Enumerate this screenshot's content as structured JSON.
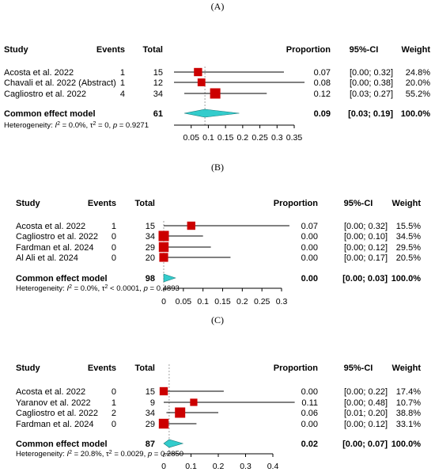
{
  "chart_data": [
    {
      "type": "forest",
      "panel_label": "(A)",
      "columns": {
        "study": "Study",
        "events": "Events",
        "total": "Total",
        "proportion": "Proportion",
        "ci": "95%-CI",
        "weight": "Weight"
      },
      "studies": [
        {
          "study": "Acosta et al. 2022",
          "events": "1",
          "total": "15",
          "proportion": 0.07,
          "ci_low": 0.0,
          "ci_high": 0.32,
          "prop_text": "0.07",
          "ci_text": "[0.00; 0.32]",
          "weight_text": "24.8%",
          "weight": 24.8
        },
        {
          "study": "Chavali et al. 2022 (Abstract)",
          "events": "1",
          "total": "12",
          "proportion": 0.08,
          "ci_low": 0.0,
          "ci_high": 0.38,
          "prop_text": "0.08",
          "ci_text": "[0.00; 0.38]",
          "weight_text": "20.0%",
          "weight": 20.0
        },
        {
          "study": "Cagliostro et al. 2022",
          "events": "4",
          "total": "34",
          "proportion": 0.12,
          "ci_low": 0.03,
          "ci_high": 0.27,
          "prop_text": "0.12",
          "ci_text": "[0.03; 0.27]",
          "weight_text": "55.2%",
          "weight": 55.2
        }
      ],
      "pooled": {
        "label": "Common effect model",
        "total": "61",
        "proportion": 0.09,
        "ci_low": 0.03,
        "ci_high": 0.19,
        "prop_text": "0.09",
        "ci_text": "[0.03; 0.19]",
        "weight_text": "100.0%"
      },
      "heterogeneity": {
        "prefix": "Heterogeneity: ",
        "i2": "= 0.0%, ",
        "tau2": "= 0, ",
        "p": "= 0.9271"
      },
      "xlim": [
        0.0,
        0.35
      ],
      "ticks": [
        0.05,
        0.1,
        0.15,
        0.2,
        0.25,
        0.3,
        0.35
      ],
      "tick_labels": [
        "0.05",
        "0.1",
        "0.15",
        "0.2",
        "0.25",
        "0.3",
        "0.35"
      ],
      "reference_line": 0.09
    },
    {
      "type": "forest",
      "panel_label": "(B)",
      "columns": {
        "study": "Study",
        "events": "Events",
        "total": "Total",
        "proportion": "Proportion",
        "ci": "95%-CI",
        "weight": "Weight"
      },
      "studies": [
        {
          "study": "Acosta et al. 2022",
          "events": "1",
          "total": "15",
          "proportion": 0.07,
          "ci_low": 0.0,
          "ci_high": 0.32,
          "prop_text": "0.07",
          "ci_text": "[0.00; 0.32]",
          "weight_text": "15.5%",
          "weight": 15.5
        },
        {
          "study": "Cagliostro et al. 2022",
          "events": "0",
          "total": "34",
          "proportion": 0.0,
          "ci_low": 0.0,
          "ci_high": 0.1,
          "prop_text": "0.00",
          "ci_text": "[0.00; 0.10]",
          "weight_text": "34.5%",
          "weight": 34.5
        },
        {
          "study": "Fardman et al. 2024",
          "events": "0",
          "total": "29",
          "proportion": 0.0,
          "ci_low": 0.0,
          "ci_high": 0.12,
          "prop_text": "0.00",
          "ci_text": "[0.00; 0.12]",
          "weight_text": "29.5%",
          "weight": 29.5
        },
        {
          "study": "Al Ali et al. 2024",
          "events": "0",
          "total": "20",
          "proportion": 0.0,
          "ci_low": 0.0,
          "ci_high": 0.17,
          "prop_text": "0.00",
          "ci_text": "[0.00; 0.17]",
          "weight_text": "20.5%",
          "weight": 20.5
        }
      ],
      "pooled": {
        "label": "Common effect model",
        "total": "98",
        "proportion": 0.0,
        "ci_low": 0.0,
        "ci_high": 0.03,
        "prop_text": "0.00",
        "ci_text": "[0.00; 0.03]",
        "weight_text": "100.0%"
      },
      "heterogeneity": {
        "prefix": "Heterogeneity: ",
        "i2": "= 0.0%, ",
        "tau2": "< 0.0001, ",
        "p": "= 0.4893"
      },
      "xlim": [
        0.0,
        0.3
      ],
      "ticks": [
        0,
        0.05,
        0.1,
        0.15,
        0.2,
        0.25,
        0.3
      ],
      "tick_labels": [
        "0",
        "0.05",
        "0.1",
        "0.15",
        "0.2",
        "0.25",
        "0.3"
      ],
      "reference_line": 0.0
    },
    {
      "type": "forest",
      "panel_label": "(C)",
      "columns": {
        "study": "Study",
        "events": "Events",
        "total": "Total",
        "proportion": "Proportion",
        "ci": "95%-CI",
        "weight": "Weight"
      },
      "studies": [
        {
          "study": "Acosta et al. 2022",
          "events": "0",
          "total": "15",
          "proportion": 0.0,
          "ci_low": 0.0,
          "ci_high": 0.22,
          "prop_text": "0.00",
          "ci_text": "[0.00; 0.22]",
          "weight_text": "17.4%",
          "weight": 17.4
        },
        {
          "study": "Yaranov et al. 2022",
          "events": "1",
          "total": "9",
          "proportion": 0.11,
          "ci_low": 0.0,
          "ci_high": 0.48,
          "prop_text": "0.11",
          "ci_text": "[0.00; 0.48]",
          "weight_text": "10.7%",
          "weight": 10.7
        },
        {
          "study": "Cagliostro et al. 2022",
          "events": "2",
          "total": "34",
          "proportion": 0.06,
          "ci_low": 0.01,
          "ci_high": 0.2,
          "prop_text": "0.06",
          "ci_text": "[0.01; 0.20]",
          "weight_text": "38.8%",
          "weight": 38.8
        },
        {
          "study": "Fardman et al. 2024",
          "events": "0",
          "total": "29",
          "proportion": 0.0,
          "ci_low": 0.0,
          "ci_high": 0.12,
          "prop_text": "0.00",
          "ci_text": "[0.00; 0.12]",
          "weight_text": "33.1%",
          "weight": 33.1
        }
      ],
      "pooled": {
        "label": "Common effect model",
        "total": "87",
        "proportion": 0.02,
        "ci_low": 0.0,
        "ci_high": 0.07,
        "prop_text": "0.02",
        "ci_text": "[0.00; 0.07]",
        "weight_text": "100.0%"
      },
      "heterogeneity": {
        "prefix": "Heterogeneity: ",
        "i2": "= 20.8%, ",
        "tau2": "= 0.0029, ",
        "p": "= 0.2850"
      },
      "xlim": [
        0.0,
        0.4
      ],
      "ticks": [
        0,
        0.1,
        0.2,
        0.3,
        0.4
      ],
      "tick_labels": [
        "0",
        "0.1",
        "0.2",
        "0.3",
        "0.4"
      ],
      "reference_line": 0.02
    }
  ],
  "colors": {
    "square": "#cc0000",
    "diamond": "#33cccc",
    "line": "#000000",
    "reference": "#888888"
  }
}
